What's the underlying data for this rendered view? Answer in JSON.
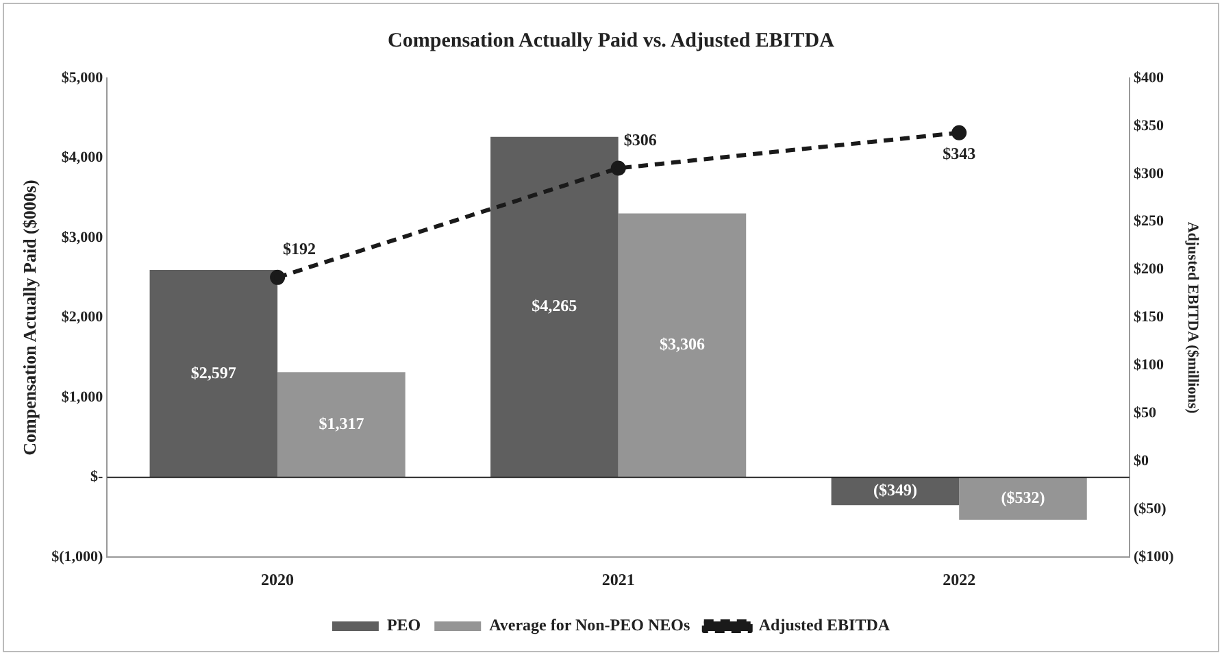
{
  "chart_data": {
    "type": "bar",
    "title": "Compensation Actually Paid vs. Adjusted EBITDA",
    "ylabel": "Compensation Actually Paid ($000s)",
    "y2label": "Adjusted EBITDA ($millions)",
    "categories": [
      "2020",
      "2021",
      "2022"
    ],
    "series": [
      {
        "name": "PEO",
        "color": "#5f5f5f",
        "values": [
          2597,
          4265,
          -349
        ],
        "value_labels": [
          "$2,597",
          "$4,265",
          "($349)"
        ]
      },
      {
        "name": "Average for Non-PEO NEOs",
        "color": "#959595",
        "values": [
          1317,
          3306,
          -532
        ],
        "value_labels": [
          "$1,317",
          "$3,306",
          "($532)"
        ]
      },
      {
        "name": "Adjusted EBITDA",
        "type": "line",
        "axis": "y2",
        "color": "#1a1a1a",
        "line_style": "dashed",
        "marker": "circle",
        "values": [
          192,
          306,
          343
        ],
        "value_labels": [
          "$192",
          "$306",
          "$343"
        ]
      }
    ],
    "ylim": [
      -1000,
      5000
    ],
    "yticks": [
      {
        "value": -1000,
        "label": "$(1,000)"
      },
      {
        "value": 0,
        "label": "$-"
      },
      {
        "value": 1000,
        "label": "$1,000"
      },
      {
        "value": 2000,
        "label": "$2,000"
      },
      {
        "value": 3000,
        "label": "$3,000"
      },
      {
        "value": 4000,
        "label": "$4,000"
      },
      {
        "value": 5000,
        "label": "$5,000"
      }
    ],
    "y2lim": [
      -100,
      400
    ],
    "y2ticks": [
      {
        "value": -100,
        "label": "($100)"
      },
      {
        "value": -50,
        "label": "($50)"
      },
      {
        "value": 0,
        "label": "$0"
      },
      {
        "value": 50,
        "label": "$50"
      },
      {
        "value": 100,
        "label": "$100"
      },
      {
        "value": 150,
        "label": "$150"
      },
      {
        "value": 200,
        "label": "$200"
      },
      {
        "value": 250,
        "label": "$250"
      },
      {
        "value": 300,
        "label": "$300"
      },
      {
        "value": 350,
        "label": "$350"
      },
      {
        "value": 400,
        "label": "$400"
      }
    ],
    "ref_lines": [
      {
        "axis": "y",
        "value": 0,
        "color": "#222222"
      }
    ],
    "grid": false,
    "legend": "bottom"
  }
}
